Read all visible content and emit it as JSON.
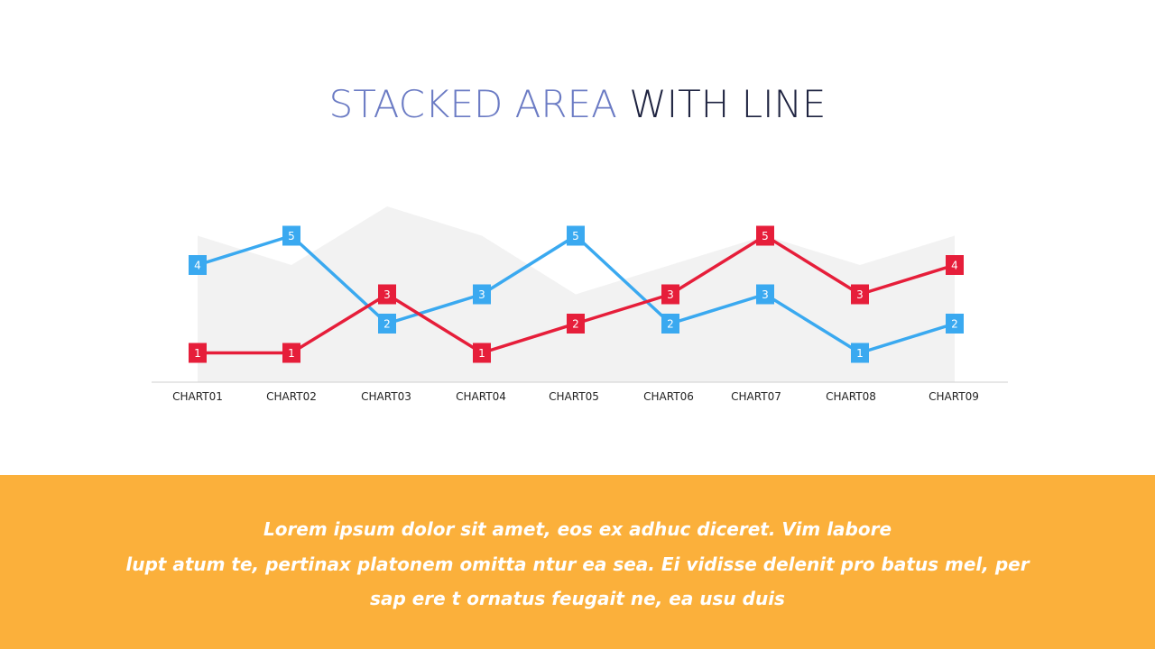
{
  "title": {
    "part1": "STACKED AREA",
    "part2": "WITH LINE"
  },
  "colors": {
    "area": "#f2f2f2",
    "blue_series": "#3aa9f0",
    "red_series": "#e61e3a",
    "footer_bg": "#fbb03b",
    "title_accent": "#6b7bc4",
    "title_dark": "#1e2340"
  },
  "chart_data": {
    "type": "line",
    "categories": [
      "CHART01",
      "CHART02",
      "CHART03",
      "CHART04",
      "CHART05",
      "CHART06",
      "CHART07",
      "CHART08",
      "CHART09"
    ],
    "area_values": [
      5,
      4,
      6,
      5,
      3,
      4,
      5,
      4,
      5
    ],
    "series": [
      {
        "values": [
          4,
          5,
          2,
          3,
          5,
          2,
          3,
          1,
          2
        ],
        "color": "#3aa9f0"
      },
      {
        "values": [
          1,
          1,
          3,
          1,
          2,
          3,
          5,
          3,
          4
        ],
        "color": "#e61e3a"
      }
    ],
    "ylim": [
      0,
      6
    ],
    "grid": false,
    "legend": "none"
  },
  "footer": {
    "lines": [
      "Lorem ipsum dolor sit amet, eos ex adhuc diceret. Vim labore",
      "lupt atum te, pertinax platonem omitta ntur ea sea. Ei vidisse delenit pro batus mel, per",
      "sap ere t ornatus feugait ne, ea usu duis"
    ]
  }
}
